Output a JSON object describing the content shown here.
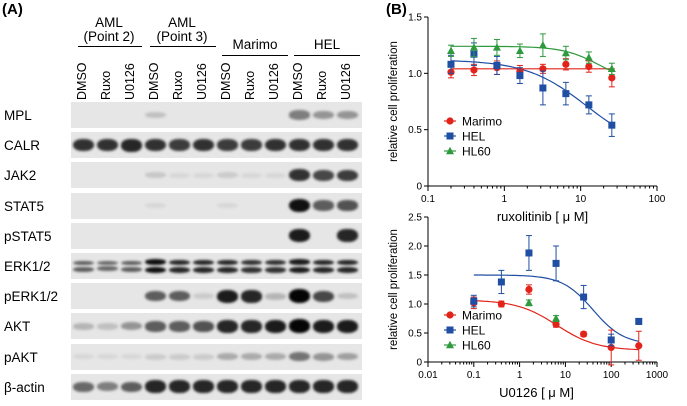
{
  "panel_a": {
    "label": "(A)",
    "groups": [
      {
        "line1": "AML",
        "line2": "(Point 2)"
      },
      {
        "line1": "AML",
        "line2": "(Point 3)"
      },
      {
        "line1": "Marimo",
        "line2": ""
      },
      {
        "line1": "HEL",
        "line2": ""
      }
    ],
    "lanes": [
      "DMSO",
      "Ruxo",
      "U0126",
      "DMSO",
      "Ruxo",
      "U0126",
      "DMSO",
      "Ruxo",
      "U0126",
      "DMSO",
      "Ruxo",
      "U0126"
    ],
    "rows": [
      {
        "label": "MPL",
        "intensity": [
          0,
          0,
          0,
          0.15,
          0,
          0,
          0,
          0,
          0,
          0.45,
          0.35,
          0.35
        ]
      },
      {
        "label": "CALR",
        "intensity": [
          0.8,
          0.8,
          0.85,
          0.8,
          0.75,
          0.8,
          0.75,
          0.75,
          0.8,
          0.8,
          0.8,
          0.8
        ]
      },
      {
        "label": "JAK2",
        "intensity": [
          0,
          0,
          0,
          0.12,
          0.05,
          0.05,
          0.1,
          0.05,
          0.05,
          0.8,
          0.7,
          0.75
        ]
      },
      {
        "label": "STAT5",
        "intensity": [
          0,
          0,
          0,
          0.05,
          0,
          0,
          0.05,
          0,
          0,
          0.95,
          0.6,
          0.65
        ]
      },
      {
        "label": "pSTAT5",
        "intensity": [
          0,
          0,
          0,
          0,
          0,
          0,
          0,
          0,
          0,
          0.9,
          0,
          0.85
        ]
      },
      {
        "label": "ERK1/2",
        "intensity": [
          0.6,
          0.55,
          0.6,
          0.95,
          0.85,
          0.85,
          0.85,
          0.8,
          0.8,
          0.9,
          0.85,
          0.85
        ]
      },
      {
        "label": "pERK1/2",
        "intensity": [
          0,
          0,
          0,
          0.6,
          0.6,
          0.1,
          0.9,
          0.85,
          0.2,
          1,
          0.7,
          0.15
        ]
      },
      {
        "label": "AKT",
        "intensity": [
          0.2,
          0.15,
          0.35,
          0.6,
          0.6,
          0.65,
          0.85,
          0.85,
          0.9,
          1,
          0.9,
          0.9
        ]
      },
      {
        "label": "pAKT",
        "intensity": [
          0.05,
          0.05,
          0.05,
          0.1,
          0.1,
          0.1,
          0.25,
          0.25,
          0.25,
          0.5,
          0.35,
          0.3
        ]
      },
      {
        "label": "β-actin",
        "intensity": [
          0.55,
          0.45,
          0.6,
          0.85,
          0.85,
          0.85,
          0.85,
          0.85,
          0.85,
          0.85,
          0.85,
          0.85
        ]
      }
    ]
  },
  "panel_b": {
    "label": "(B)",
    "legend": [
      {
        "name": "Marimo",
        "color": "#e2231a",
        "marker": "circle"
      },
      {
        "name": "HEL",
        "color": "#1f4ea3",
        "marker": "square"
      },
      {
        "name": "HL60",
        "color": "#2e9a3e",
        "marker": "triangle"
      }
    ]
  },
  "chart_data": [
    {
      "type": "scatter",
      "title": "",
      "xlabel": "ruxolitinib [ μ M]",
      "ylabel": "relative cell proliferation",
      "xscale": "log",
      "xlim": [
        0.1,
        100
      ],
      "ylim": [
        0,
        1.5
      ],
      "x_ticks": [
        0.1,
        1,
        10,
        100
      ],
      "x_tick_labels": [
        "0.1",
        "1",
        "10",
        "100"
      ],
      "y_ticks": [
        0,
        0.5,
        1.0,
        1.5
      ],
      "y_tick_labels": [
        "0",
        "0.5",
        "1.0",
        "1.5"
      ],
      "legend_position": "bottom-left",
      "series": [
        {
          "name": "Marimo",
          "color": "#e2231a",
          "marker": "circle",
          "x": [
            0.2,
            0.4,
            0.8,
            1.6,
            3.2,
            6.4,
            12.8,
            25.6
          ],
          "y": [
            1.01,
            1.03,
            1.05,
            1.02,
            1.04,
            1.08,
            1.06,
            0.96
          ],
          "err": [
            0.05,
            0.05,
            0.06,
            0.05,
            0.04,
            0.05,
            0.05,
            0.08
          ],
          "fit": {
            "top": 1.04,
            "bottom": 1.04,
            "ic50": 10,
            "hill": 1
          }
        },
        {
          "name": "HEL",
          "color": "#1f4ea3",
          "marker": "square",
          "x": [
            0.2,
            0.4,
            0.8,
            1.6,
            3.2,
            6.4,
            12.8,
            25.6
          ],
          "y": [
            1.08,
            1.17,
            1.07,
            0.98,
            0.87,
            0.82,
            0.72,
            0.54
          ],
          "err": [
            0.08,
            0.1,
            0.08,
            0.07,
            0.15,
            0.1,
            0.08,
            0.1
          ],
          "fit": {
            "top": 1.12,
            "bottom": 0.3,
            "ic50": 12,
            "hill": 1.1
          }
        },
        {
          "name": "HL60",
          "color": "#2e9a3e",
          "marker": "triangle",
          "x": [
            0.2,
            0.4,
            0.8,
            1.6,
            3.2,
            6.4,
            12.8,
            25.6
          ],
          "y": [
            1.2,
            1.23,
            1.23,
            1.2,
            1.25,
            1.18,
            1.14,
            1.04
          ],
          "err": [
            0.05,
            0.08,
            0.07,
            0.06,
            0.1,
            0.06,
            0.05,
            0.05
          ],
          "fit": {
            "top": 1.24,
            "bottom": 0.9,
            "ic50": 18,
            "hill": 1.8
          }
        }
      ]
    },
    {
      "type": "scatter",
      "title": "",
      "xlabel": "U0126 [ μ M]",
      "ylabel": "relative cell proliferation",
      "xscale": "log",
      "xlim": [
        0.01,
        1000
      ],
      "ylim": [
        0,
        2.5
      ],
      "x_ticks": [
        0.01,
        0.1,
        1,
        10,
        100,
        1000
      ],
      "x_tick_labels": [
        "0.01",
        "0.1",
        "1",
        "10",
        "100",
        "1000"
      ],
      "y_ticks": [
        0,
        0.5,
        1.0,
        1.5,
        2.0,
        2.5
      ],
      "y_tick_labels": [
        "0",
        "0.5",
        "1.0",
        "1.5",
        "2.0",
        "2.5"
      ],
      "legend_position": "bottom-left",
      "series": [
        {
          "name": "Marimo",
          "color": "#e2231a",
          "marker": "circle",
          "x": [
            0.1,
            0.4,
            1.6,
            6.25,
            25,
            100,
            400
          ],
          "y": [
            1.02,
            1.0,
            1.25,
            0.65,
            0.48,
            0.25,
            0.28
          ],
          "err": [
            0.1,
            0.05,
            0.08,
            0.05,
            0.04,
            0.3,
            0.25
          ],
          "fit": {
            "top": 1.07,
            "bottom": 0.2,
            "ic50": 6.5,
            "hill": 1
          }
        },
        {
          "name": "HEL",
          "color": "#1f4ea3",
          "marker": "square",
          "x": [
            0.1,
            0.4,
            1.6,
            6.25,
            25,
            100,
            400
          ],
          "y": [
            1.05,
            1.38,
            1.88,
            1.7,
            1.12,
            0.38,
            0.7
          ],
          "err": [
            0.1,
            0.2,
            0.3,
            0.3,
            0.2,
            0.1,
            0.05
          ],
          "fit": {
            "top": 1.5,
            "bottom": 0.3,
            "ic50": 40,
            "hill": 1.3
          }
        },
        {
          "name": "HL60",
          "color": "#2e9a3e",
          "marker": "triangle",
          "x": [
            1.6,
            6.25
          ],
          "y": [
            1.02,
            0.75
          ],
          "err": [
            0.05,
            0.05
          ],
          "fit": null
        }
      ]
    }
  ]
}
